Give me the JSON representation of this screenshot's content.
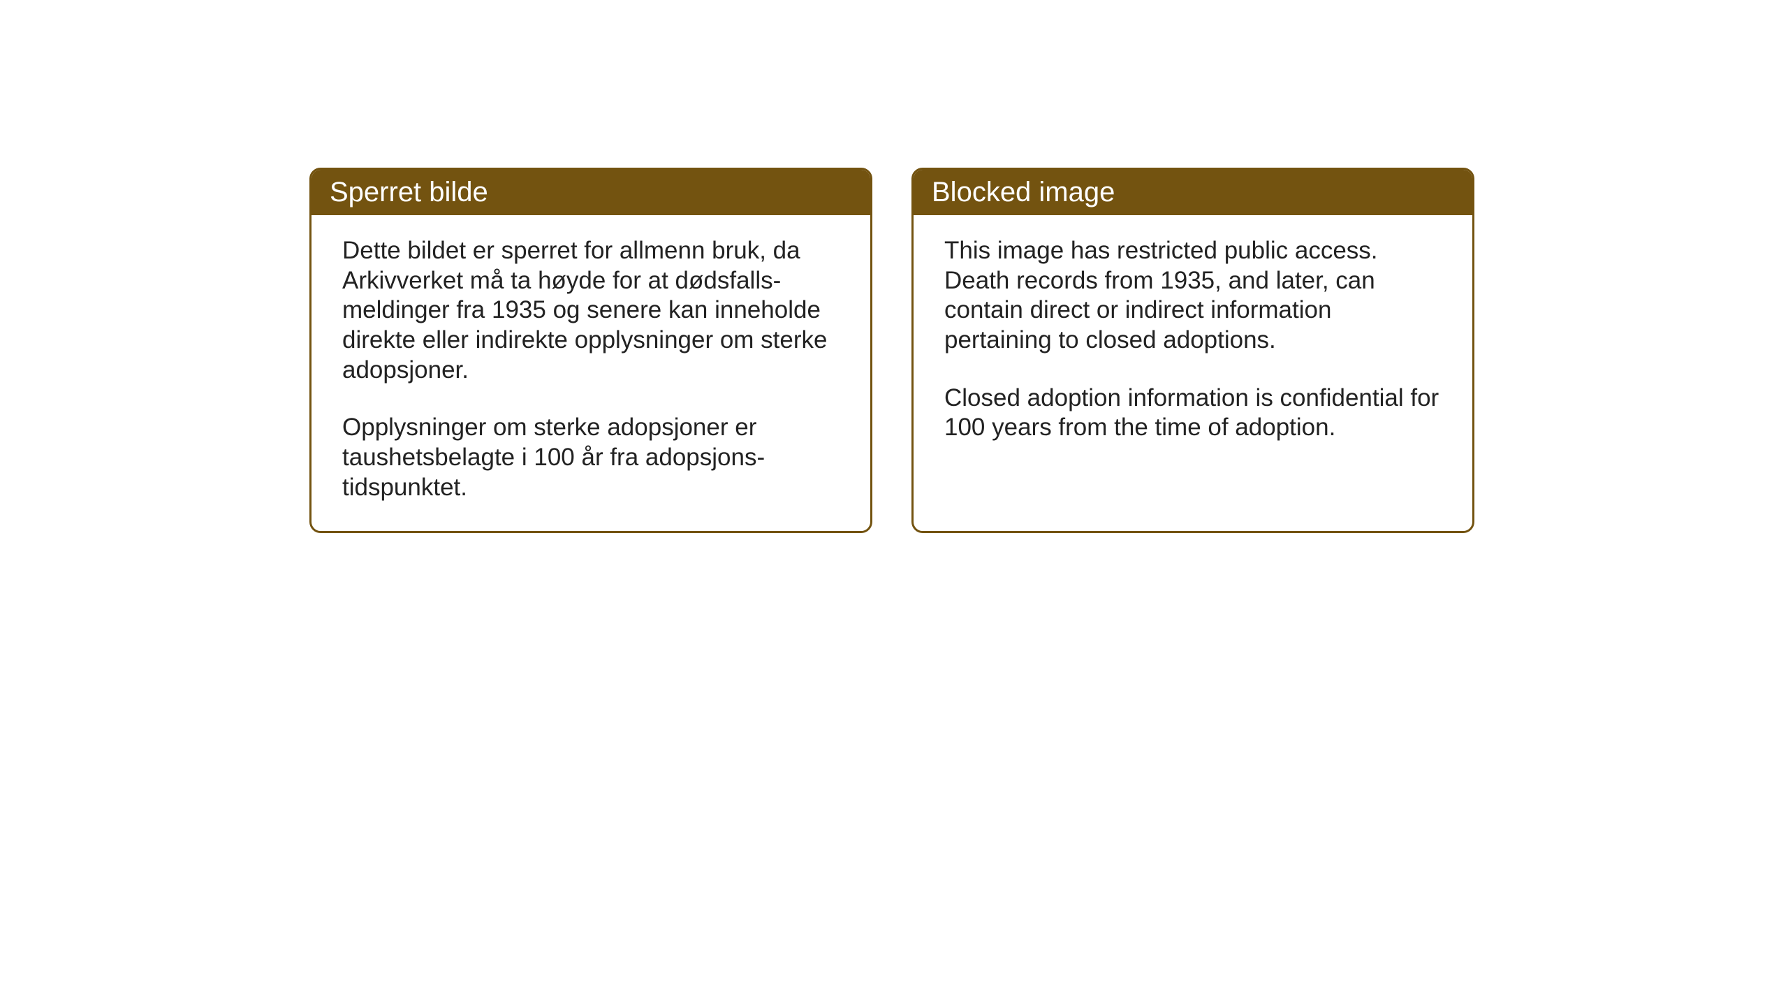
{
  "layout": {
    "background_color": "#ffffff",
    "card_border_color": "#735310",
    "header_background": "#735310",
    "header_text_color": "#ffffff",
    "body_text_color": "#222222",
    "card_border_radius": 16,
    "header_font_size": 40,
    "body_font_size": 35
  },
  "cards": {
    "norwegian": {
      "title": "Sperret bilde",
      "paragraph1": "Dette bildet er sperret for allmenn bruk, da Arkivverket må ta høyde for at dødsfalls-meldinger fra 1935 og senere kan inneholde direkte eller indirekte opplysninger om sterke adopsjoner.",
      "paragraph2": "Opplysninger om sterke adopsjoner er taushetsbelagte i 100 år fra adopsjons-tidspunktet."
    },
    "english": {
      "title": "Blocked image",
      "paragraph1": "This image has restricted public access. Death records from 1935, and later, can contain direct or indirect information pertaining to closed adoptions.",
      "paragraph2": "Closed adoption information is confidential for 100 years from the time of adoption."
    }
  }
}
